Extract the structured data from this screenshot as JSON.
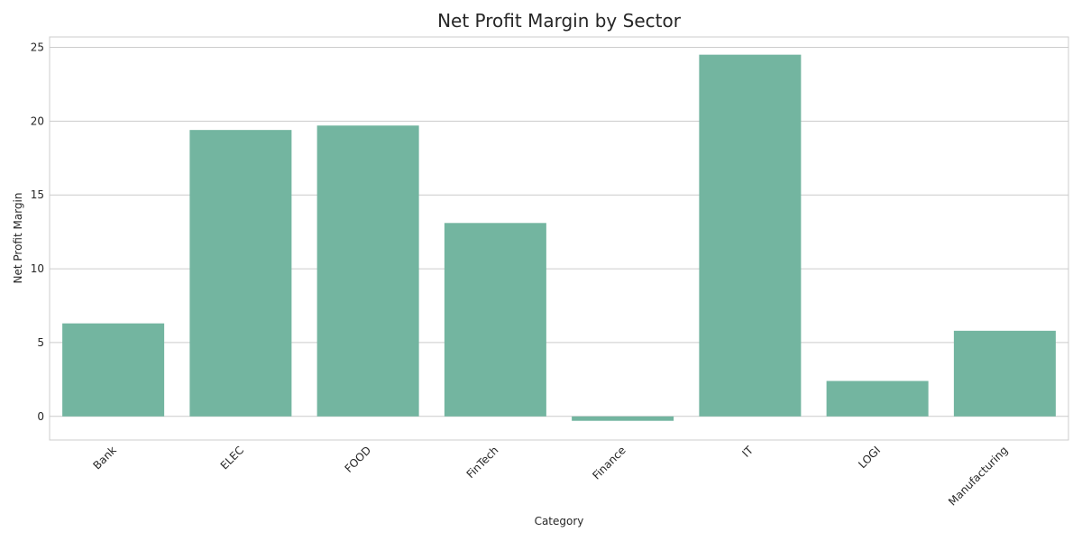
{
  "chart_data": {
    "type": "bar",
    "title": "Net Profit Margin by Sector",
    "xlabel": "Category",
    "ylabel": "Net Profit Margin",
    "categories": [
      "Bank",
      "ELEC",
      "FOOD",
      "FinTech",
      "Finance",
      "IT",
      "LOGI",
      "Manufacturing"
    ],
    "values": [
      6.3,
      19.4,
      19.7,
      13.1,
      -0.3,
      24.5,
      2.4,
      5.8
    ],
    "yticks": [
      "0",
      "5",
      "10",
      "15",
      "20",
      "25"
    ],
    "ylim": [
      -1.6,
      25.7
    ],
    "grid": true,
    "bar_color": "#73b5a0",
    "grid_color": "#cccccc"
  }
}
